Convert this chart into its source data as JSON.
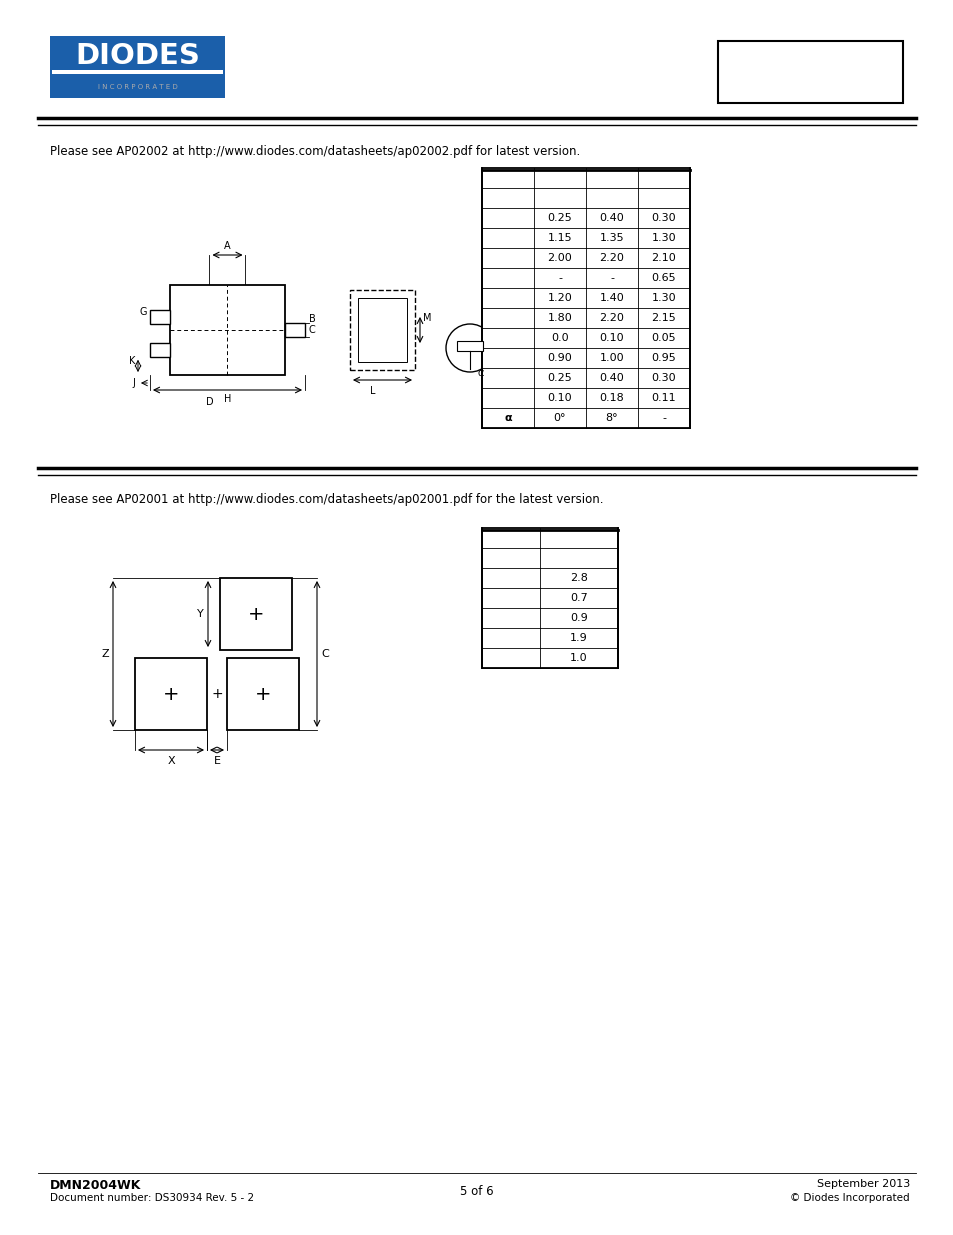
{
  "bg_color": "#ffffff",
  "section1_text": "Please see AP02002 at http://www.diodes.com/datasheets/ap02002.pdf for latest version.",
  "section2_text": "Please see AP02001 at http://www.diodes.com/datasheets/ap02001.pdf for the latest version.",
  "table1_data": [
    [
      "",
      "",
      "",
      ""
    ],
    [
      "",
      "",
      "",
      ""
    ],
    [
      "",
      "0.25",
      "0.40",
      "0.30"
    ],
    [
      "",
      "1.15",
      "1.35",
      "1.30"
    ],
    [
      "",
      "2.00",
      "2.20",
      "2.10"
    ],
    [
      "",
      "-",
      "-",
      "0.65"
    ],
    [
      "",
      "1.20",
      "1.40",
      "1.30"
    ],
    [
      "",
      "1.80",
      "2.20",
      "2.15"
    ],
    [
      "",
      "0.0",
      "0.10",
      "0.05"
    ],
    [
      "",
      "0.90",
      "1.00",
      "0.95"
    ],
    [
      "",
      "0.25",
      "0.40",
      "0.30"
    ],
    [
      "",
      "0.10",
      "0.18",
      "0.11"
    ],
    [
      "α",
      "0°",
      "8°",
      "-"
    ]
  ],
  "table2_data": [
    [
      "",
      ""
    ],
    [
      "",
      ""
    ],
    [
      "",
      "2.8"
    ],
    [
      "",
      "0.7"
    ],
    [
      "",
      "0.9"
    ],
    [
      "",
      "1.9"
    ],
    [
      "",
      "1.0"
    ]
  ],
  "footer_left_line1": "DMN2004WK",
  "footer_left_line2": "Document number: DS30934 Rev. 5 - 2",
  "footer_center": "5 of 6",
  "footer_right_line1": "September 2013",
  "footer_right_line2": "© Diodes Incorporated"
}
